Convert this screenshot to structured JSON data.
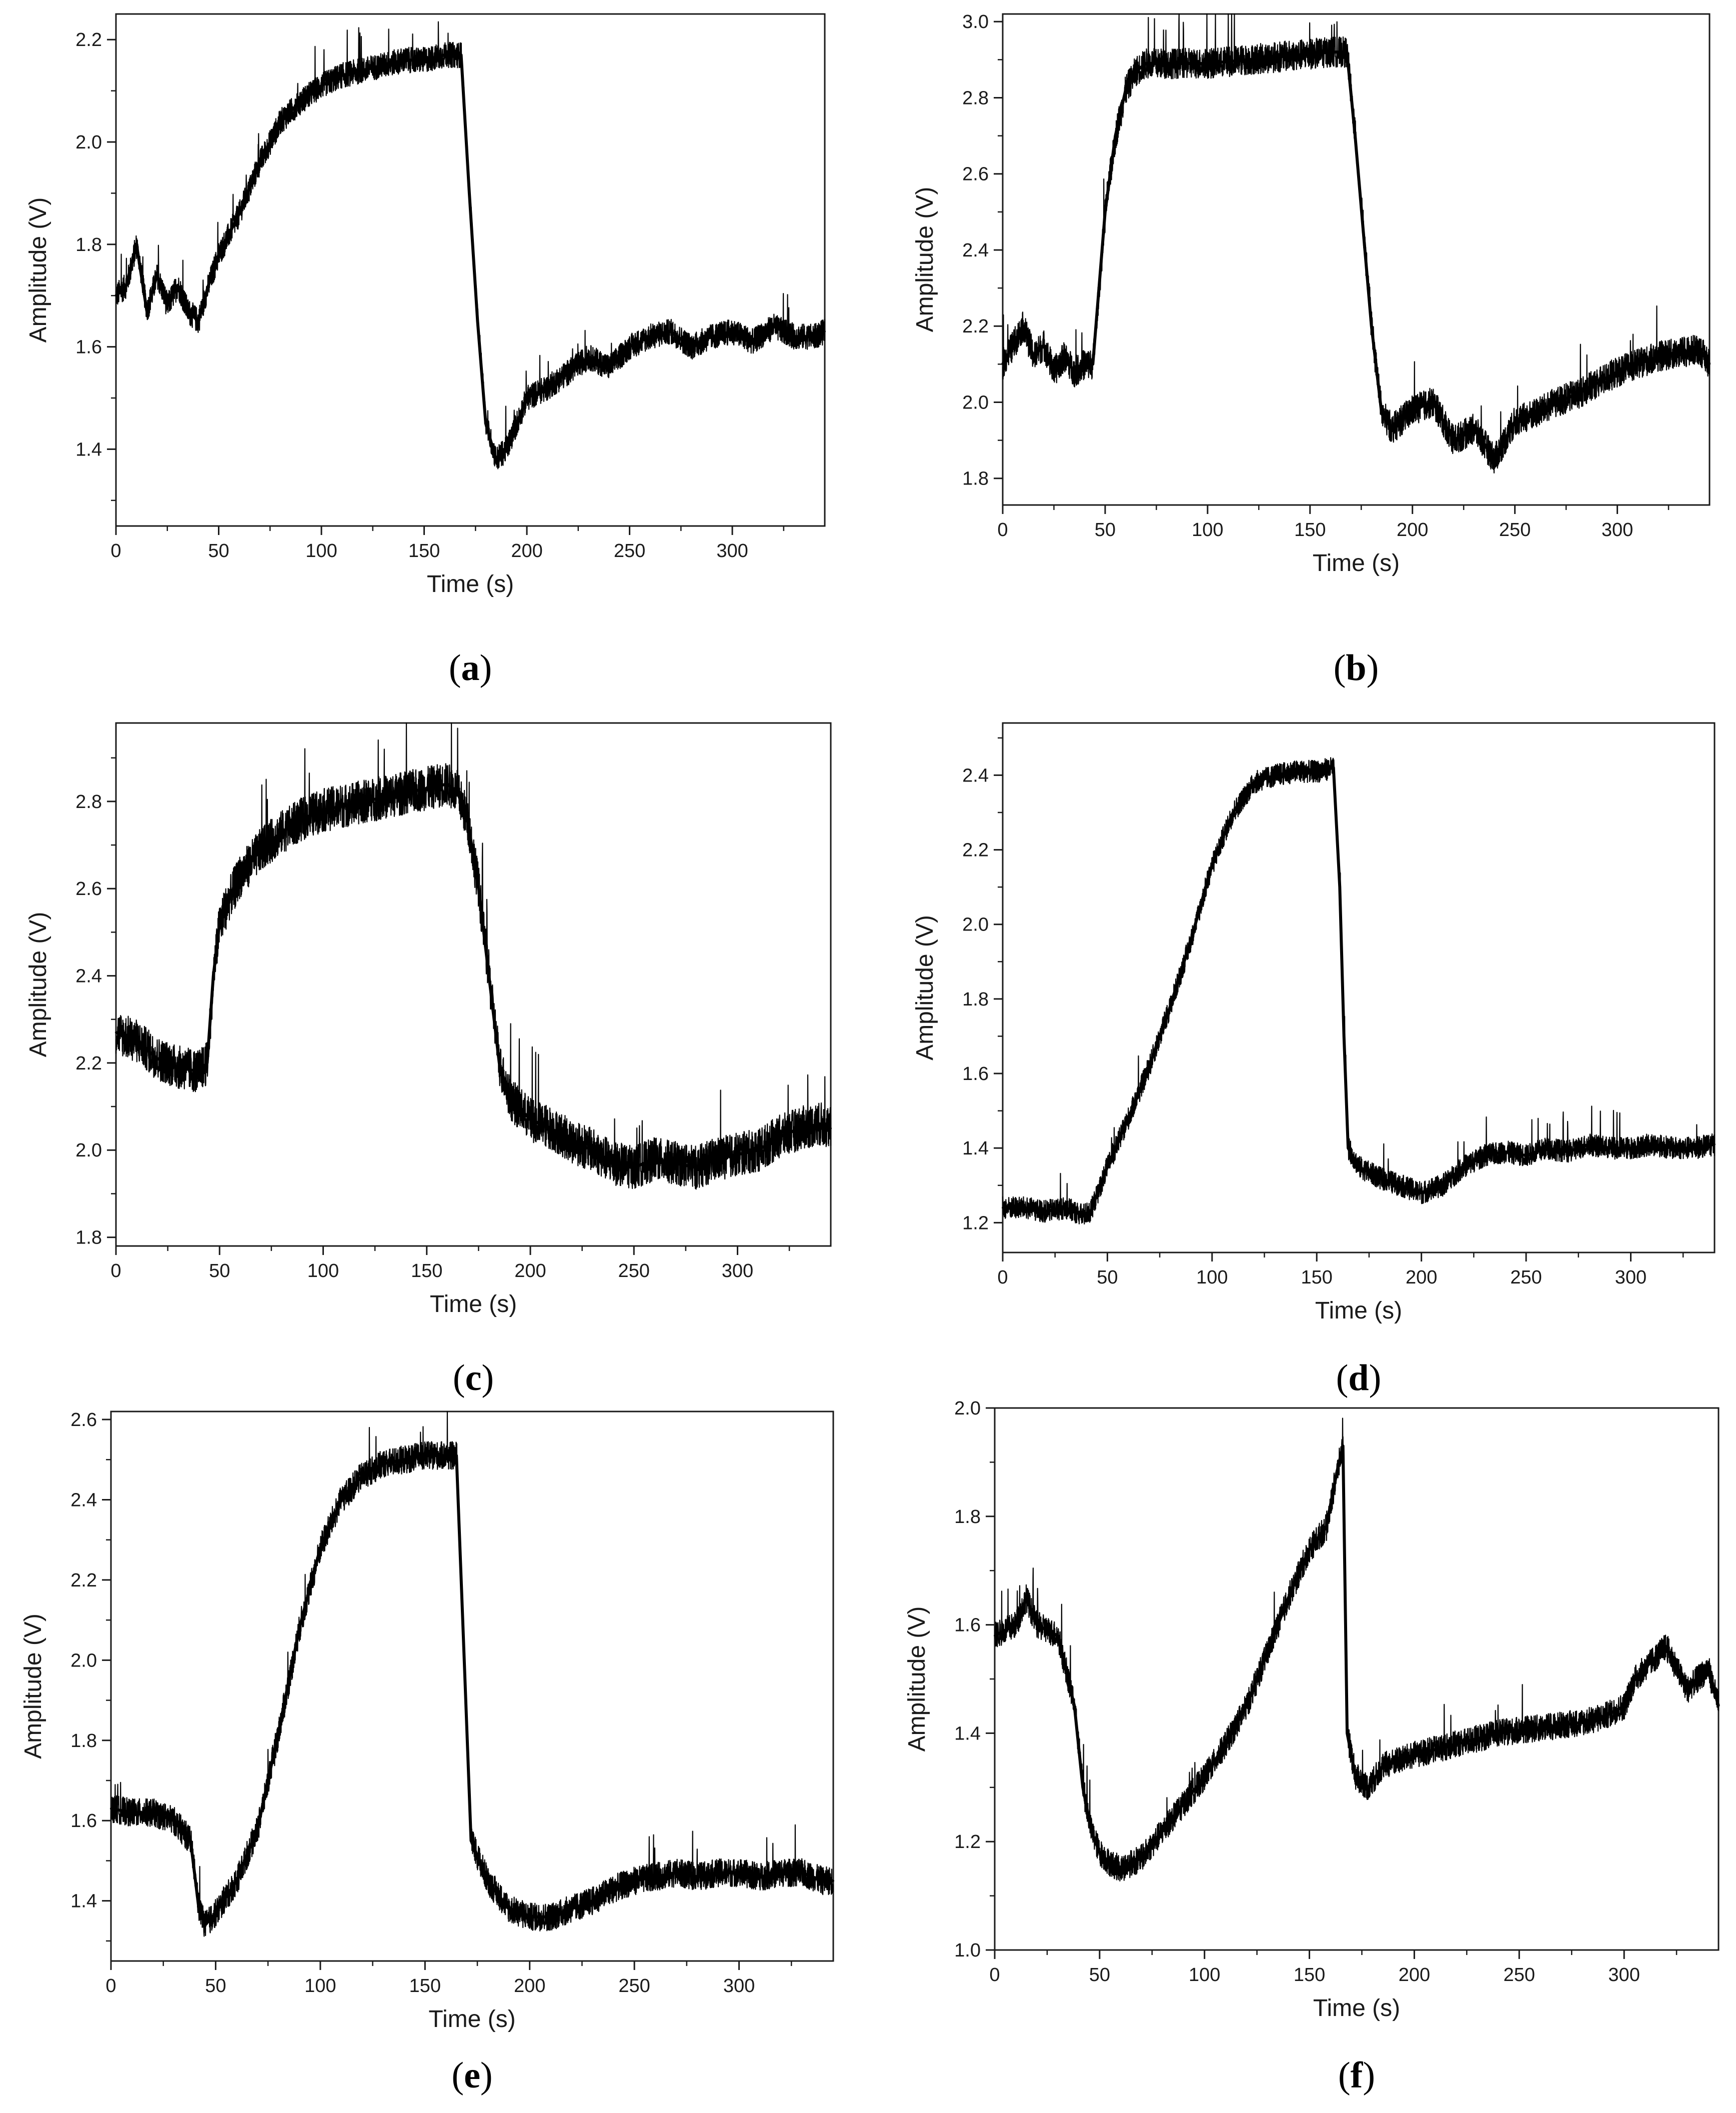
{
  "colors": {
    "line": "#000000",
    "axis": "#1a1a1a",
    "background": "#ffffff"
  },
  "chart_data": [
    {
      "type": "line",
      "panel_label": "a",
      "xlabel": "Time (s)",
      "ylabel": "Amplitude (V)",
      "xlim": [
        0,
        345
      ],
      "ylim": [
        1.25,
        2.25
      ],
      "x_ticks": [
        0,
        50,
        100,
        150,
        200,
        250,
        300
      ],
      "y_ticks": [
        1.4,
        1.6,
        1.8,
        2.0,
        2.2
      ],
      "y_tick_labels": [
        "1.4",
        "1.6",
        "1.8",
        "2.0",
        "2.2"
      ],
      "noise_band": 0.025,
      "series": [
        {
          "name": "Amplitude",
          "x": [
            0,
            5,
            10,
            15,
            20,
            25,
            30,
            35,
            40,
            45,
            50,
            60,
            70,
            80,
            90,
            100,
            110,
            120,
            130,
            140,
            150,
            160,
            168,
            172,
            176,
            180,
            185,
            190,
            195,
            200,
            210,
            220,
            230,
            240,
            250,
            260,
            270,
            280,
            290,
            300,
            310,
            320,
            330,
            340,
            345
          ],
          "y": [
            1.7,
            1.72,
            1.8,
            1.67,
            1.74,
            1.68,
            1.72,
            1.67,
            1.65,
            1.72,
            1.78,
            1.86,
            1.96,
            2.04,
            2.08,
            2.11,
            2.13,
            2.14,
            2.15,
            2.16,
            2.16,
            2.17,
            2.17,
            1.9,
            1.65,
            1.45,
            1.38,
            1.4,
            1.45,
            1.5,
            1.52,
            1.55,
            1.58,
            1.56,
            1.6,
            1.62,
            1.63,
            1.6,
            1.62,
            1.63,
            1.61,
            1.64,
            1.62,
            1.62,
            1.63
          ]
        }
      ]
    },
    {
      "type": "line",
      "panel_label": "b",
      "xlabel": "Time (s)",
      "ylabel": "Amplitude (V)",
      "xlim": [
        0,
        345
      ],
      "ylim": [
        1.73,
        3.02
      ],
      "x_ticks": [
        0,
        50,
        100,
        150,
        200,
        250,
        300
      ],
      "y_ticks": [
        1.8,
        2.0,
        2.2,
        2.4,
        2.6,
        2.8,
        3.0
      ],
      "y_tick_labels": [
        "1.8",
        "2.0",
        "2.2",
        "2.4",
        "2.6",
        "2.8",
        "3.0"
      ],
      "noise_band": 0.04,
      "series": [
        {
          "name": "Amplitude",
          "x": [
            0,
            5,
            10,
            15,
            20,
            25,
            30,
            35,
            40,
            44,
            47,
            50,
            55,
            60,
            65,
            70,
            80,
            100,
            120,
            140,
            160,
            168,
            172,
            176,
            180,
            185,
            190,
            200,
            210,
            220,
            230,
            240,
            250,
            260,
            270,
            280,
            290,
            300,
            310,
            320,
            330,
            340,
            345
          ],
          "y": [
            2.1,
            2.15,
            2.2,
            2.12,
            2.15,
            2.08,
            2.12,
            2.08,
            2.1,
            2.1,
            2.3,
            2.5,
            2.7,
            2.82,
            2.87,
            2.89,
            2.89,
            2.89,
            2.9,
            2.91,
            2.92,
            2.92,
            2.7,
            2.45,
            2.2,
            1.97,
            1.93,
            1.98,
            2.0,
            1.9,
            1.93,
            1.85,
            1.95,
            1.97,
            2.0,
            2.02,
            2.05,
            2.08,
            2.1,
            2.12,
            2.13,
            2.14,
            2.1
          ]
        }
      ]
    },
    {
      "type": "line",
      "panel_label": "c",
      "xlabel": "Time (s)",
      "ylabel": "Amplitude (V)",
      "xlim": [
        0,
        345
      ],
      "ylim": [
        1.78,
        2.98
      ],
      "x_ticks": [
        0,
        50,
        100,
        150,
        200,
        250,
        300
      ],
      "y_ticks": [
        1.8,
        2.0,
        2.2,
        2.4,
        2.6,
        2.8
      ],
      "y_tick_labels": [
        "1.8",
        "2.0",
        "2.2",
        "2.4",
        "2.6",
        "2.8"
      ],
      "noise_band": 0.05,
      "series": [
        {
          "name": "Amplitude",
          "x": [
            0,
            10,
            20,
            30,
            40,
            44,
            47,
            50,
            55,
            60,
            70,
            80,
            90,
            100,
            110,
            120,
            130,
            140,
            150,
            160,
            165,
            170,
            175,
            180,
            185,
            190,
            200,
            210,
            220,
            230,
            240,
            250,
            260,
            270,
            280,
            290,
            300,
            310,
            320,
            330,
            340,
            345
          ],
          "y": [
            2.27,
            2.25,
            2.21,
            2.19,
            2.18,
            2.2,
            2.4,
            2.52,
            2.58,
            2.63,
            2.69,
            2.73,
            2.76,
            2.78,
            2.79,
            2.8,
            2.81,
            2.82,
            2.83,
            2.84,
            2.82,
            2.75,
            2.6,
            2.4,
            2.2,
            2.12,
            2.07,
            2.05,
            2.02,
            2.0,
            1.97,
            1.96,
            1.98,
            1.97,
            1.96,
            1.98,
            1.99,
            2.0,
            2.03,
            2.05,
            2.06,
            2.05
          ]
        }
      ]
    },
    {
      "type": "line",
      "panel_label": "d",
      "xlabel": "Time (s)",
      "ylabel": "Amplitude (V)",
      "xlim": [
        0,
        340
      ],
      "ylim": [
        1.12,
        2.54
      ],
      "x_ticks": [
        0,
        50,
        100,
        150,
        200,
        250,
        300
      ],
      "y_ticks": [
        1.2,
        1.4,
        1.6,
        1.8,
        2.0,
        2.2,
        2.4
      ],
      "y_tick_labels": [
        "1.2",
        "1.4",
        "1.6",
        "1.8",
        "2.0",
        "2.2",
        "2.4"
      ],
      "noise_band": 0.03,
      "series": [
        {
          "name": "Amplitude",
          "x": [
            0,
            10,
            20,
            30,
            38,
            42,
            50,
            60,
            70,
            80,
            90,
            100,
            110,
            120,
            130,
            140,
            150,
            158,
            161,
            163,
            165,
            170,
            180,
            190,
            200,
            210,
            220,
            230,
            240,
            250,
            260,
            270,
            280,
            290,
            300,
            310,
            320,
            330,
            340
          ],
          "y": [
            1.24,
            1.24,
            1.23,
            1.24,
            1.22,
            1.23,
            1.35,
            1.48,
            1.62,
            1.78,
            1.96,
            2.16,
            2.3,
            2.38,
            2.4,
            2.41,
            2.41,
            2.42,
            2.1,
            1.7,
            1.4,
            1.35,
            1.32,
            1.3,
            1.28,
            1.3,
            1.35,
            1.38,
            1.39,
            1.38,
            1.4,
            1.39,
            1.41,
            1.4,
            1.4,
            1.41,
            1.4,
            1.4,
            1.41
          ]
        }
      ]
    },
    {
      "type": "line",
      "panel_label": "e",
      "xlabel": "Time (s)",
      "ylabel": "Amplitude (V)",
      "xlim": [
        0,
        345
      ],
      "ylim": [
        1.25,
        2.62
      ],
      "x_ticks": [
        0,
        50,
        100,
        150,
        200,
        250,
        300
      ],
      "y_ticks": [
        1.4,
        1.6,
        1.8,
        2.0,
        2.2,
        2.4,
        2.6
      ],
      "y_tick_labels": [
        "1.4",
        "1.6",
        "1.8",
        "2.0",
        "2.2",
        "2.4",
        "2.6"
      ],
      "noise_band": 0.035,
      "series": [
        {
          "name": "Amplitude",
          "x": [
            0,
            10,
            20,
            30,
            38,
            42,
            45,
            50,
            60,
            70,
            80,
            90,
            100,
            110,
            120,
            130,
            140,
            150,
            160,
            165,
            168,
            172,
            180,
            190,
            200,
            210,
            220,
            230,
            240,
            250,
            260,
            270,
            280,
            290,
            300,
            310,
            320,
            330,
            340,
            345
          ],
          "y": [
            1.63,
            1.62,
            1.62,
            1.6,
            1.55,
            1.38,
            1.34,
            1.37,
            1.45,
            1.58,
            1.82,
            2.08,
            2.28,
            2.4,
            2.46,
            2.49,
            2.5,
            2.51,
            2.51,
            2.51,
            2.1,
            1.55,
            1.45,
            1.38,
            1.36,
            1.36,
            1.38,
            1.4,
            1.43,
            1.45,
            1.46,
            1.47,
            1.46,
            1.47,
            1.47,
            1.46,
            1.47,
            1.47,
            1.45,
            1.45
          ]
        }
      ]
    },
    {
      "type": "line",
      "panel_label": "f",
      "xlabel": "Time (s)",
      "ylabel": "Amplitude (V)",
      "xlim": [
        0,
        345
      ],
      "ylim": [
        1.0,
        2.0
      ],
      "x_ticks": [
        0,
        50,
        100,
        150,
        200,
        250,
        300
      ],
      "y_ticks": [
        1.0,
        1.2,
        1.4,
        1.6,
        1.8,
        2.0
      ],
      "y_tick_labels": [
        "1.0",
        "1.2",
        "1.4",
        "1.6",
        "1.8",
        "2.0"
      ],
      "noise_band": 0.025,
      "series": [
        {
          "name": "Amplitude",
          "x": [
            0,
            10,
            15,
            20,
            30,
            38,
            42,
            46,
            50,
            55,
            60,
            70,
            80,
            90,
            100,
            110,
            120,
            130,
            140,
            150,
            158,
            163,
            166,
            168,
            172,
            178,
            185,
            200,
            220,
            240,
            260,
            280,
            290,
            295,
            300,
            305,
            310,
            320,
            330,
            340,
            345
          ],
          "y": [
            1.58,
            1.6,
            1.65,
            1.6,
            1.58,
            1.45,
            1.3,
            1.22,
            1.18,
            1.16,
            1.15,
            1.17,
            1.22,
            1.27,
            1.32,
            1.38,
            1.45,
            1.55,
            1.65,
            1.74,
            1.78,
            1.88,
            1.93,
            1.4,
            1.32,
            1.3,
            1.34,
            1.36,
            1.38,
            1.4,
            1.41,
            1.42,
            1.43,
            1.44,
            1.45,
            1.5,
            1.52,
            1.56,
            1.48,
            1.52,
            1.45
          ]
        }
      ]
    }
  ]
}
